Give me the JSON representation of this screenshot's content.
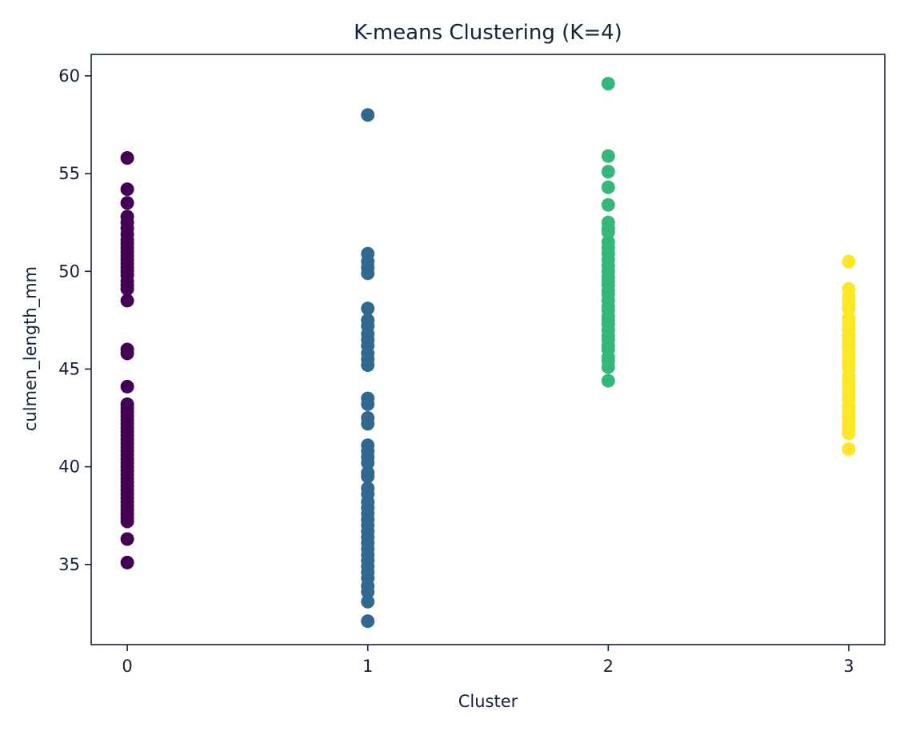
{
  "chart_data": {
    "type": "scatter",
    "title": "K-means Clustering (K=4)",
    "xlabel": "Cluster",
    "ylabel": "culmen_length_mm",
    "xlim": [
      -0.15,
      3.15
    ],
    "ylim": [
      30.9,
      61.1
    ],
    "xticks": [
      0,
      1,
      2,
      3
    ],
    "yticks": [
      35,
      40,
      45,
      50,
      55,
      60
    ],
    "grid": false,
    "legend": "none",
    "series": [
      {
        "color": "#440154",
        "x": 0,
        "y": [
          55.8,
          54.2,
          53.5,
          52.8,
          52.5,
          52.2,
          51.9,
          51.6,
          51.4,
          51.2,
          51.0,
          50.8,
          50.6,
          50.4,
          50.2,
          50.0,
          49.8,
          49.5,
          49.3,
          49.1,
          48.5,
          46.0,
          45.8,
          44.1,
          43.2,
          43.0,
          42.8,
          42.6,
          42.4,
          42.2,
          42.0,
          41.8,
          41.6,
          41.4,
          41.2,
          41.0,
          40.8,
          40.6,
          40.4,
          40.2,
          40.0,
          39.8,
          39.6,
          39.4,
          39.2,
          39.0,
          38.8,
          38.6,
          38.4,
          38.2,
          38.0,
          37.8,
          37.6,
          37.4,
          37.2,
          36.3,
          35.1
        ]
      },
      {
        "color": "#31688e",
        "x": 1,
        "y": [
          58.0,
          50.9,
          50.5,
          50.2,
          49.9,
          48.1,
          47.5,
          47.2,
          46.8,
          46.5,
          46.2,
          45.8,
          45.5,
          45.2,
          43.5,
          43.2,
          42.5,
          42.2,
          41.1,
          40.8,
          40.5,
          40.2,
          39.7,
          39.5,
          38.9,
          38.6,
          38.2,
          37.9,
          37.6,
          37.3,
          37.0,
          36.7,
          36.4,
          36.1,
          35.8,
          35.5,
          35.2,
          34.9,
          34.6,
          34.3,
          33.9,
          33.6,
          33.1,
          32.1
        ]
      },
      {
        "color": "#35b779",
        "x": 2,
        "y": [
          59.6,
          55.9,
          55.1,
          54.3,
          53.4,
          52.5,
          52.2,
          52.0,
          51.5,
          51.2,
          50.9,
          50.6,
          50.3,
          50.0,
          49.7,
          49.5,
          49.3,
          49.0,
          48.8,
          48.5,
          48.2,
          48.0,
          47.7,
          47.5,
          47.3,
          47.0,
          46.7,
          46.5,
          46.2,
          46.0,
          45.6,
          45.4,
          45.1,
          44.4
        ]
      },
      {
        "color": "#fde725",
        "x": 3,
        "y": [
          50.5,
          49.1,
          48.7,
          48.4,
          48.1,
          47.6,
          47.3,
          47.0,
          46.7,
          46.4,
          46.1,
          45.8,
          45.5,
          45.3,
          45.0,
          44.6,
          44.3,
          44.0,
          43.7,
          43.4,
          43.1,
          42.8,
          42.5,
          42.2,
          41.9,
          41.7,
          40.9
        ]
      }
    ]
  }
}
